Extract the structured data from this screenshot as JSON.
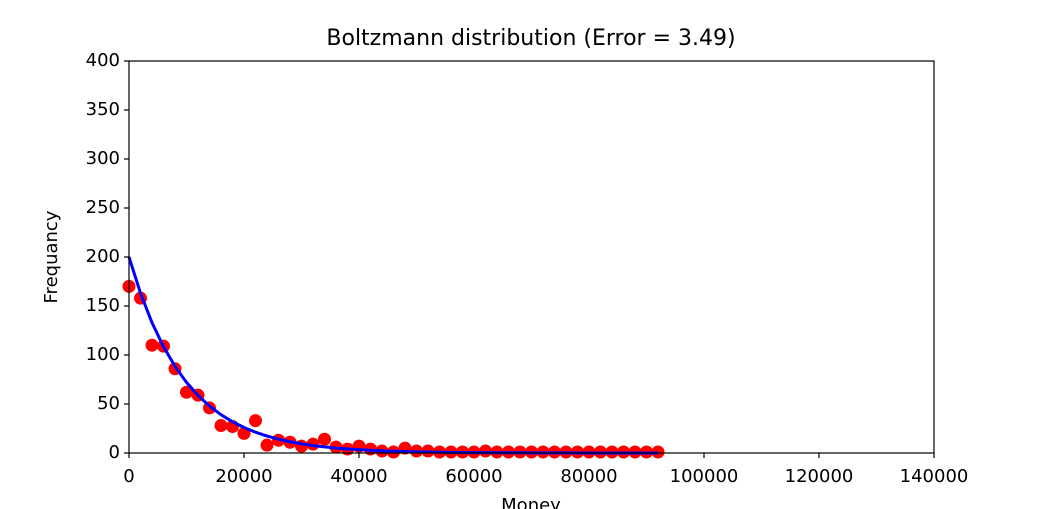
{
  "chart_data": {
    "type": "scatter",
    "title": "Boltzmann distribution (Error = 3.49)",
    "xlabel": "Money",
    "ylabel": "Frequancy",
    "x": [
      0,
      2000,
      4000,
      6000,
      8000,
      10000,
      12000,
      14000,
      16000,
      18000,
      20000,
      22000,
      24000,
      26000,
      28000,
      30000,
      32000,
      34000,
      36000,
      38000,
      40000,
      42000,
      44000,
      46000,
      48000,
      50000,
      52000,
      54000,
      56000,
      58000,
      60000,
      62000,
      64000,
      66000,
      68000,
      70000,
      72000,
      74000,
      76000,
      78000,
      80000,
      82000,
      84000,
      86000,
      88000,
      90000,
      92000
    ],
    "values": [
      170,
      158,
      110,
      109,
      86,
      62,
      59,
      46,
      28,
      27,
      20,
      33,
      8,
      13,
      11,
      7,
      9,
      14,
      6,
      4,
      7,
      4,
      2,
      1,
      5,
      2,
      2,
      1,
      1,
      1,
      1,
      2,
      1,
      1,
      1,
      1,
      1,
      1,
      1,
      1,
      1,
      1,
      1,
      1,
      1,
      1,
      1
    ],
    "color": "#ff0000",
    "fit_values": [
      200,
      163.1,
      133,
      108.4,
      88.4,
      72.1,
      58.8,
      47.9,
      39.1,
      31.9,
      26,
      21.2,
      17.3,
      14.1,
      11.5,
      9.4,
      7.6,
      6.2,
      5.1,
      4.1,
      3.4,
      2.8,
      2.2,
      1.8,
      1.5,
      1.2,
      1,
      0.8,
      0.7,
      0.5,
      0.4,
      0.4,
      0.3,
      0.2,
      0.2,
      0.1,
      0.1,
      0.1,
      0.1,
      0.1,
      0,
      0,
      0,
      0,
      0,
      0,
      0
    ],
    "fit_color": "#0000ff",
    "xlim": [
      0,
      140000
    ],
    "xticks": [
      0,
      20000,
      40000,
      60000,
      80000,
      100000,
      120000,
      140000
    ],
    "ylim": [
      0,
      400
    ],
    "yticks": [
      0,
      50,
      100,
      150,
      200,
      250,
      300,
      350,
      400
    ]
  }
}
